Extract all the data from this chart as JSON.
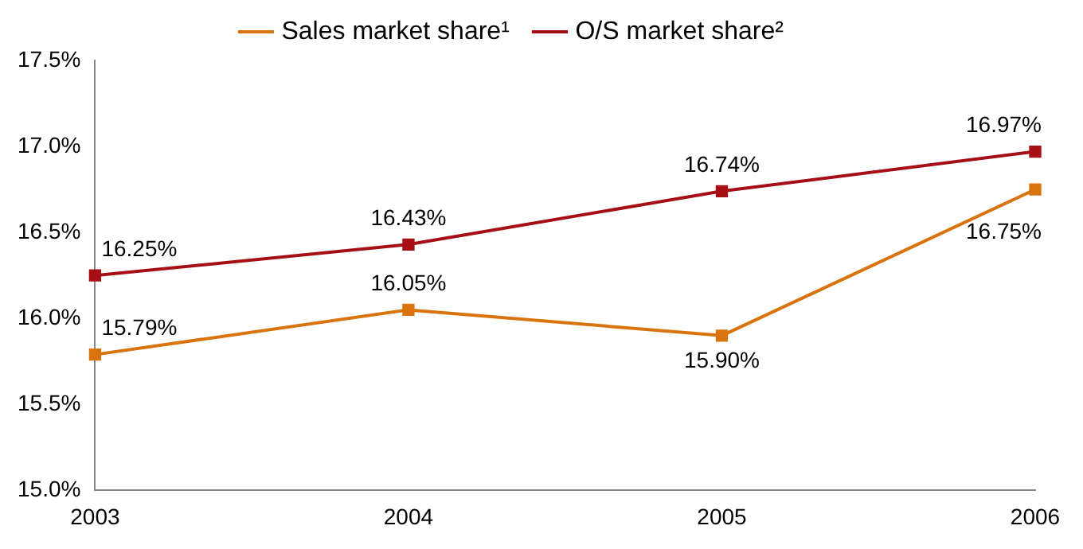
{
  "chart_data": {
    "type": "line",
    "categories": [
      "2003",
      "2004",
      "2005",
      "2006"
    ],
    "series": [
      {
        "name": "Sales market share¹",
        "color": "#d9730d",
        "values": [
          15.79,
          16.05,
          15.9,
          16.75
        ],
        "value_labels": [
          "15.79%",
          "16.05%",
          "15.90%",
          "16.75%"
        ]
      },
      {
        "name": "O/S market share²",
        "color": "#a50f15",
        "values": [
          16.25,
          16.43,
          16.74,
          16.97
        ],
        "value_labels": [
          "16.25%",
          "16.43%",
          "16.74%",
          "16.97%"
        ]
      }
    ],
    "ylim": [
      15.0,
      17.5
    ],
    "yticks": [
      {
        "value": 15.0,
        "label": "15.0%"
      },
      {
        "value": 15.5,
        "label": "15.5%"
      },
      {
        "value": 16.0,
        "label": "16.0%"
      },
      {
        "value": 16.5,
        "label": "16.5%"
      },
      {
        "value": 17.0,
        "label": "17.0%"
      },
      {
        "value": 17.5,
        "label": "17.5%"
      }
    ],
    "grid": false,
    "legend": "top",
    "marker": "square",
    "line_style": "solid"
  }
}
